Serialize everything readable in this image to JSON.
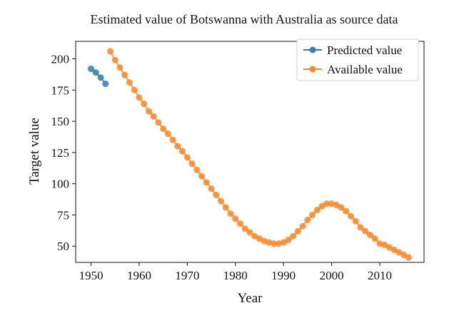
{
  "chart_data": {
    "type": "line",
    "title": "Estimated value of Botswanna with Australia as source data",
    "xlabel": "Year",
    "ylabel": "Target value",
    "xlim": [
      1946.8,
      2019.2
    ],
    "ylim": [
      37,
      214
    ],
    "xticks": [
      1950,
      1960,
      1970,
      1980,
      1990,
      2000,
      2010
    ],
    "yticks": [
      50,
      75,
      100,
      125,
      150,
      175,
      200
    ],
    "grid": false,
    "legend": {
      "position": "top-right"
    },
    "series": [
      {
        "name": "Predicted value",
        "color": "#3a7eb4",
        "x": [
          1950,
          1951,
          1952,
          1953
        ],
        "y": [
          192,
          189,
          185,
          180
        ]
      },
      {
        "name": "Available value",
        "color": "#f28b30",
        "x": [
          1954,
          1955,
          1956,
          1957,
          1958,
          1959,
          1960,
          1961,
          1962,
          1963,
          1964,
          1965,
          1966,
          1967,
          1968,
          1969,
          1970,
          1971,
          1972,
          1973,
          1974,
          1975,
          1976,
          1977,
          1978,
          1979,
          1980,
          1981,
          1982,
          1983,
          1984,
          1985,
          1986,
          1987,
          1988,
          1989,
          1990,
          1991,
          1992,
          1993,
          1994,
          1995,
          1996,
          1997,
          1998,
          1999,
          2000,
          2001,
          2002,
          2003,
          2004,
          2005,
          2006,
          2007,
          2008,
          2009,
          2010,
          2011,
          2012,
          2013,
          2014,
          2015,
          2016
        ],
        "y": [
          206,
          199,
          193,
          187,
          181,
          175,
          169,
          164,
          158,
          154,
          149,
          144,
          140,
          135,
          130,
          126,
          121,
          116,
          111,
          106,
          101,
          96,
          91,
          86,
          81,
          76,
          72,
          68,
          64,
          61,
          58,
          56,
          54,
          53,
          52,
          52,
          53,
          55,
          58,
          62,
          66,
          71,
          75,
          79,
          82,
          84,
          84,
          83,
          81,
          78,
          74,
          70,
          65,
          62,
          59,
          56,
          52,
          51,
          49,
          47,
          45,
          43,
          41
        ]
      }
    ]
  }
}
